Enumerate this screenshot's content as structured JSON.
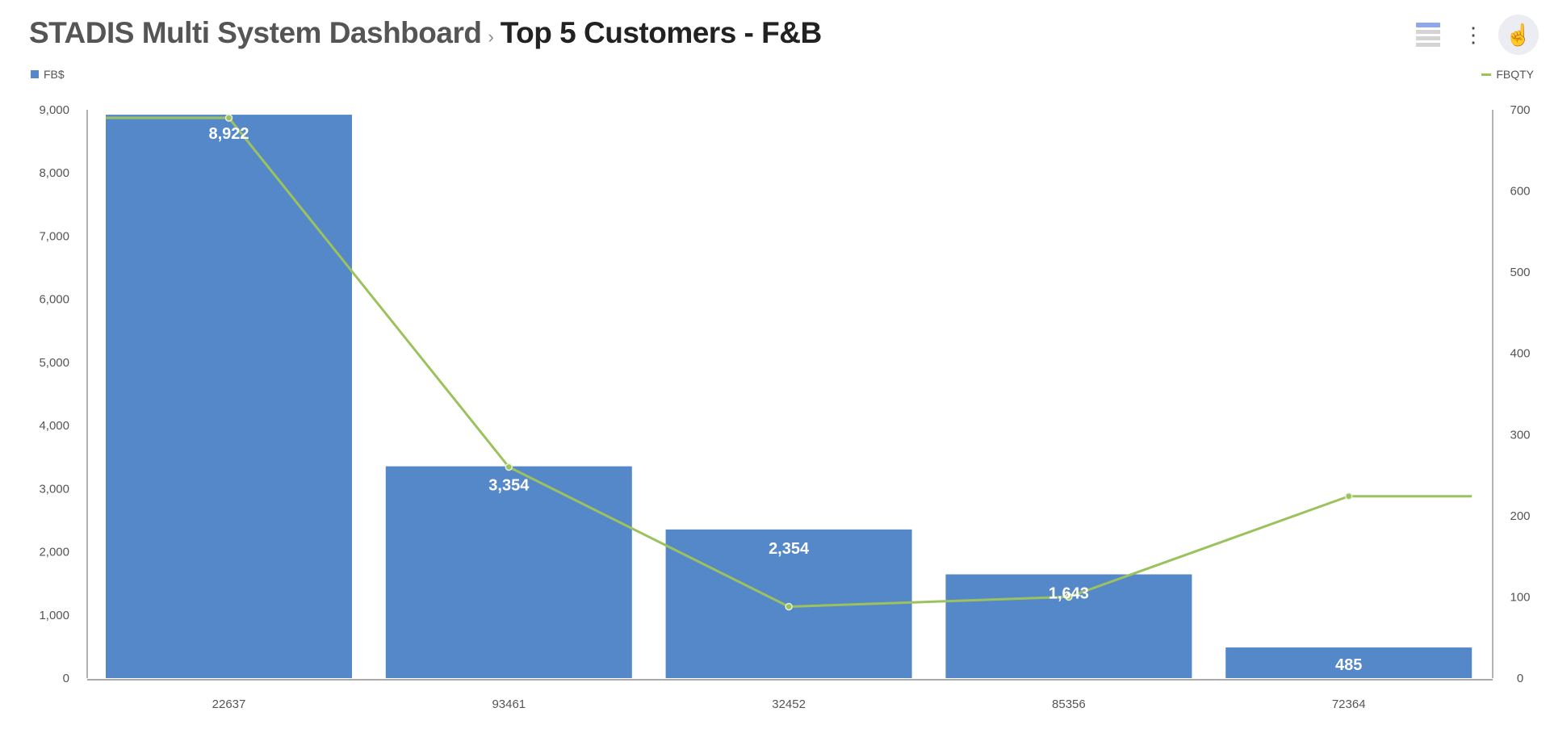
{
  "header": {
    "breadcrumb": "STADIS Multi System Dashboard",
    "separator": "›",
    "title": "Top 5 Customers - F&B",
    "icons": [
      "table-view-icon",
      "more-vert-icon",
      "pointer-hand-icon"
    ]
  },
  "chart_data": {
    "type": "bar+line",
    "categories": [
      "22637",
      "93461",
      "32452",
      "85356",
      "72364"
    ],
    "series": [
      {
        "name": "FB$",
        "type": "bar",
        "axis": "left",
        "color": "#5588c9",
        "values": [
          8922,
          3354,
          2354,
          1643,
          485
        ],
        "data_labels": [
          "8,922",
          "3,354",
          "2,354",
          "1,643",
          "485"
        ]
      },
      {
        "name": "FBQTY",
        "type": "line",
        "axis": "right",
        "color": "#9bc25e",
        "values": [
          690,
          260,
          88,
          100,
          224
        ]
      }
    ],
    "y_left": {
      "range": [
        0,
        9000
      ],
      "ticks": [
        "0",
        "1,000",
        "2,000",
        "3,000",
        "4,000",
        "5,000",
        "6,000",
        "7,000",
        "8,000",
        "9,000"
      ]
    },
    "y_right": {
      "range": [
        0,
        700
      ],
      "ticks": [
        "0",
        "100",
        "200",
        "300",
        "400",
        "500",
        "600",
        "700"
      ]
    },
    "legend": {
      "bar_position": "top-left",
      "line_position": "top-right"
    },
    "grid": false
  }
}
